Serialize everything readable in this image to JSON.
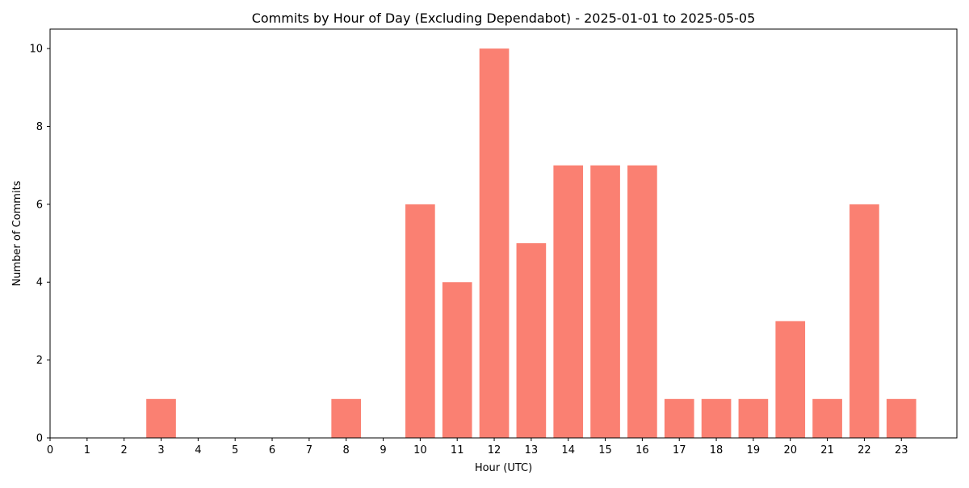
{
  "chart_data": {
    "type": "bar",
    "title": "Commits by Hour of Day (Excluding Dependabot) - 2025-01-01 to 2025-05-05",
    "xlabel": "Hour (UTC)",
    "ylabel": "Number of Commits",
    "categories": [
      "3",
      "8",
      "10",
      "11",
      "12",
      "13",
      "14",
      "15",
      "16",
      "17",
      "18",
      "19",
      "20",
      "21",
      "22",
      "23"
    ],
    "x": [
      3,
      8,
      10,
      11,
      12,
      13,
      14,
      15,
      16,
      17,
      18,
      19,
      20,
      21,
      22,
      23
    ],
    "values": [
      1,
      1,
      6,
      4,
      10,
      5,
      7,
      7,
      7,
      1,
      1,
      1,
      3,
      1,
      6,
      1
    ],
    "x_ticks": [
      0,
      1,
      2,
      3,
      4,
      5,
      6,
      7,
      8,
      9,
      10,
      11,
      12,
      13,
      14,
      15,
      16,
      17,
      18,
      19,
      20,
      21,
      22,
      23
    ],
    "y_ticks": [
      0,
      2,
      4,
      6,
      8,
      10
    ],
    "xlim": [
      0,
      24.5
    ],
    "ylim": [
      0,
      10.5
    ],
    "grid": false,
    "legend": "none",
    "bar_color": "#fa8072"
  }
}
